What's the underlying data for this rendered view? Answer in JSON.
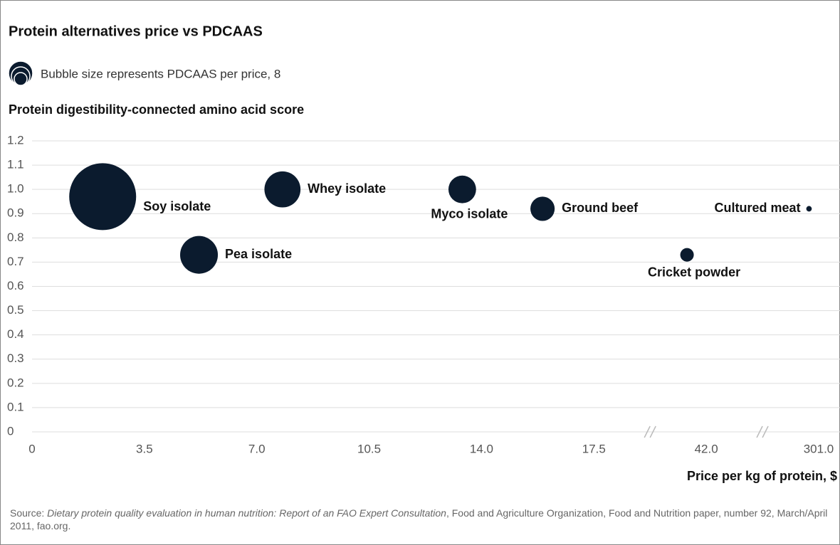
{
  "chart_data": {
    "type": "bubble",
    "title": "Protein alternatives price vs PDCAAS",
    "legend_text": "Bubble size represents PDCAAS per price, 8",
    "y_label": "Protein digestibility-connected amino acid score",
    "x_label": "Price per kg of protein, $",
    "labels": [
      "Soy isolate",
      "Pea isolate",
      "Whey isolate",
      "Myco isolate",
      "Ground beef",
      "Cricket powder",
      "Cultured meat"
    ],
    "x": [
      2.2,
      5.2,
      7.8,
      13.4,
      15.9,
      41.4,
      300.7
    ],
    "values": [
      0.97,
      0.73,
      1.0,
      1.0,
      0.92,
      0.73,
      0.92
    ],
    "sizes": [
      0.44,
      0.14,
      0.128,
      0.075,
      0.058,
      0.018,
      0.003
    ],
    "color": "#0b1b2e",
    "ylim": [
      0,
      1.2
    ],
    "yticks": [
      0,
      0.1,
      0.2,
      0.3,
      0.4,
      0.5,
      0.6,
      0.7,
      0.8,
      0.9,
      {
        "value": 1,
        "label": "1.0"
      },
      1.1,
      1.2
    ],
    "xlim": [
      0,
      301
    ],
    "xticks": [
      0,
      3.5,
      {
        "value": 7,
        "label": "7.0"
      },
      10.5,
      {
        "value": 14,
        "label": "14.0"
      },
      17.5,
      {
        "value": 42,
        "label": "42.0"
      },
      {
        "value": 301,
        "label": "301.0"
      }
    ],
    "grid": true,
    "source": [
      {
        "text": "Source: "
      },
      {
        "text": "Dietary protein quality evaluation in human nutrition: Report of an FAO Expert Consultation",
        "italic": true
      },
      {
        "text": ", Food and Agriculture Organization, Food and Nutrition paper, number 92, March/April 2011, fao.org."
      }
    ]
  }
}
